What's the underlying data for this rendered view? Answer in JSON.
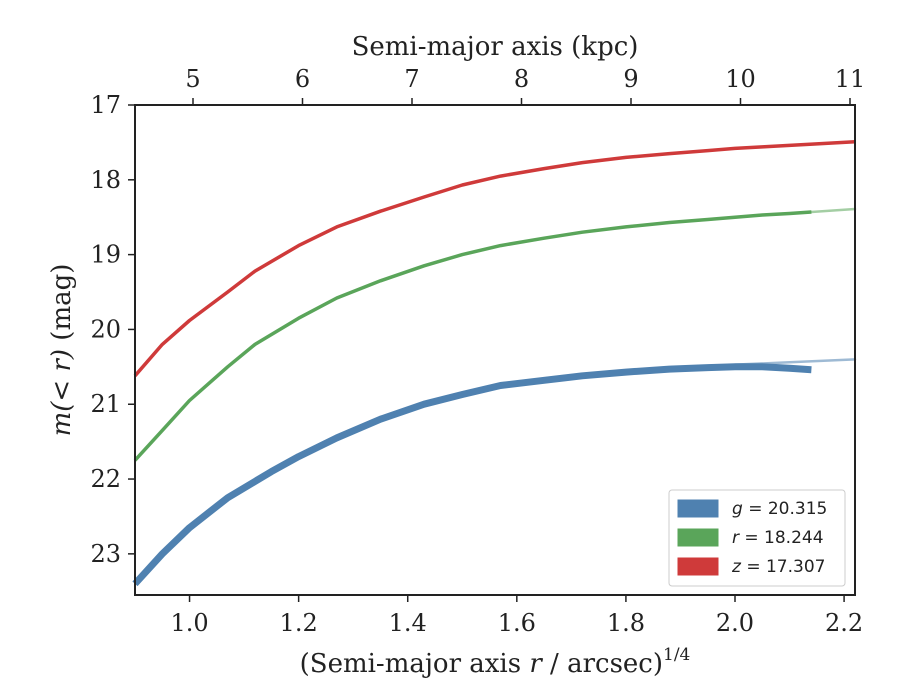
{
  "chart_data": {
    "type": "line",
    "xlabel_bottom_prefix": "(Semi-major axis ",
    "xlabel_bottom_var": "r",
    "xlabel_bottom_suffix": " / arcsec)",
    "xlabel_bottom_exponent": "1/4",
    "xlabel_top": "Semi-major axis (kpc)",
    "ylabel_var": "m(< r)",
    "ylabel_unit": " (mag)",
    "xlim": [
      0.9,
      2.22
    ],
    "ylim": [
      23.55,
      17.0
    ],
    "y_inverted": true,
    "x_ticks": [
      "1.0",
      "1.2",
      "1.4",
      "1.6",
      "1.8",
      "2.0",
      "2.2"
    ],
    "y_ticks": [
      "17",
      "18",
      "19",
      "20",
      "21",
      "22",
      "23"
    ],
    "top_ticks": [
      "5",
      "6",
      "7",
      "8",
      "9",
      "10",
      "11"
    ],
    "legend_position": "lower-right",
    "series": [
      {
        "name": "g = 20.315",
        "label_var": "g",
        "label_value": "= 20.315",
        "color": "#4f81b0",
        "x": [
          0.9,
          0.95,
          1.0,
          1.07,
          1.15,
          1.2,
          1.27,
          1.35,
          1.43,
          1.5,
          1.57,
          1.65,
          1.72,
          1.8,
          1.88,
          1.95,
          2.0,
          2.05,
          2.1,
          2.14
        ],
        "y": [
          23.4,
          23.0,
          22.65,
          22.25,
          21.9,
          21.7,
          21.45,
          21.2,
          21.0,
          20.87,
          20.75,
          20.68,
          20.62,
          20.57,
          20.53,
          20.51,
          20.5,
          20.5,
          20.52,
          20.54
        ],
        "extension_x": [
          2.0,
          2.1,
          2.22
        ],
        "extension_y": [
          20.47,
          20.44,
          20.4
        ]
      },
      {
        "name": "r = 18.244",
        "label_var": "r",
        "label_value": "= 18.244",
        "color": "#5aa55a",
        "x": [
          0.9,
          0.95,
          1.0,
          1.07,
          1.12,
          1.2,
          1.27,
          1.35,
          1.43,
          1.5,
          1.57,
          1.65,
          1.72,
          1.8,
          1.88,
          1.95,
          2.0,
          2.05,
          2.1,
          2.14
        ],
        "y": [
          21.75,
          21.35,
          20.95,
          20.5,
          20.2,
          19.85,
          19.58,
          19.35,
          19.15,
          19.0,
          18.88,
          18.78,
          18.7,
          18.63,
          18.57,
          18.53,
          18.5,
          18.47,
          18.45,
          18.43
        ],
        "extension_x": [
          2.14,
          2.18,
          2.22
        ],
        "extension_y": [
          18.43,
          18.41,
          18.39
        ]
      },
      {
        "name": "z = 17.307",
        "label_var": "z",
        "label_value": "= 17.307",
        "color": "#cf3a3a",
        "x": [
          0.9,
          0.95,
          1.0,
          1.07,
          1.12,
          1.2,
          1.27,
          1.35,
          1.43,
          1.5,
          1.57,
          1.65,
          1.72,
          1.8,
          1.88,
          1.95,
          2.0,
          2.05,
          2.1,
          2.15,
          2.22
        ],
        "y": [
          20.62,
          20.2,
          19.88,
          19.5,
          19.22,
          18.88,
          18.63,
          18.42,
          18.23,
          18.07,
          17.95,
          17.85,
          17.77,
          17.7,
          17.65,
          17.61,
          17.58,
          17.56,
          17.54,
          17.52,
          17.49
        ]
      }
    ]
  }
}
